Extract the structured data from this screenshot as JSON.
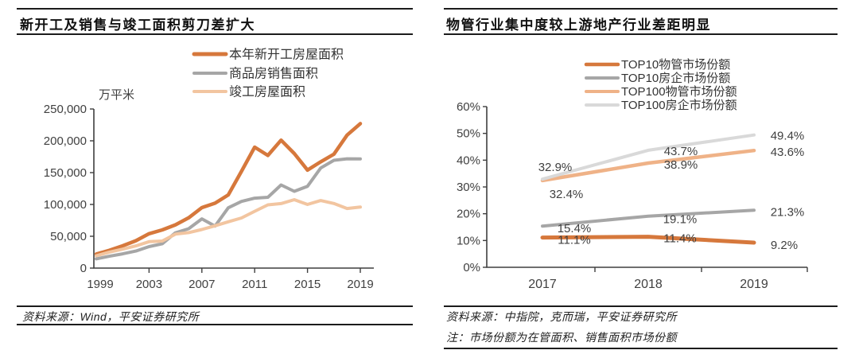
{
  "left_panel": {
    "title": "新开工及销售与竣工面积剪刀差扩大",
    "source": "资料来源：Wind，平安证券研究所"
  },
  "right_panel": {
    "title": "物管行业集中度较上游地产行业差距明显",
    "source": "资料来源：中指院，克而瑞，平安证券研究所",
    "note": "注：市场份额为在管面积、销售面积市场份额"
  },
  "colors": {
    "orange": "#D6783C",
    "gray": "#A6A6A6",
    "peach": "#F2C5A0",
    "light_orange": "#EFB287",
    "light_gray": "#D9D9D9",
    "axis": "#3f3f3f",
    "tick_label": "#404040",
    "data_label": "#404040",
    "rule": "#1c1c1c"
  },
  "chart_data": [
    {
      "type": "line",
      "title": "新开工及销售与竣工面积剪刀差扩大",
      "ylabel": "万平米",
      "grid": false,
      "legend_position": "top-right",
      "x": [
        1999,
        2000,
        2001,
        2002,
        2003,
        2004,
        2005,
        2006,
        2007,
        2008,
        2009,
        2010,
        2011,
        2012,
        2013,
        2014,
        2015,
        2016,
        2017,
        2018,
        2019
      ],
      "x_tick_labels": [
        "1999",
        "2003",
        "2007",
        "2011",
        "2015",
        "2019"
      ],
      "y_tick_labels": [
        "0",
        "50,000",
        "100,000",
        "150,000",
        "200,000",
        "250,000"
      ],
      "ylim": [
        0,
        250000
      ],
      "series": [
        {
          "name": "本年新开工房屋面积",
          "color": "#D6783C",
          "values": [
            22000,
            28000,
            35000,
            43000,
            54000,
            60000,
            68000,
            79000,
            95000,
            102000,
            115000,
            152000,
            190000,
            177000,
            201000,
            180000,
            154000,
            167000,
            179000,
            209000,
            227000
          ]
        },
        {
          "name": "商品房销售面积",
          "color": "#A6A6A6",
          "values": [
            14500,
            18600,
            22400,
            26800,
            33700,
            38200,
            55500,
            61900,
            77400,
            66000,
            94800,
            104800,
            109900,
            111300,
            130600,
            120600,
            128500,
            157300,
            169400,
            171700,
            171600
          ]
        },
        {
          "name": "竣工房屋面积",
          "color": "#F2C5A0",
          "values": [
            19400,
            25100,
            29800,
            34900,
            41500,
            42500,
            53400,
            55800,
            60600,
            66500,
            72700,
            78700,
            89200,
            99400,
            101400,
            107500,
            100000,
            106100,
            101500,
            93600,
            95900
          ]
        }
      ]
    },
    {
      "type": "line",
      "title": "物管行业集中度较上游地产行业差距明显",
      "grid": false,
      "legend_position": "top-right",
      "x": [
        2017,
        2018,
        2019
      ],
      "x_tick_labels": [
        "2017",
        "2018",
        "2019"
      ],
      "y_tick_labels": [
        "0%",
        "10%",
        "20%",
        "30%",
        "40%",
        "50%",
        "60%"
      ],
      "ylim": [
        0,
        60
      ],
      "series": [
        {
          "name": "TOP10物管市场份额",
          "color": "#D6783C",
          "values": [
            11.1,
            11.4,
            9.2
          ],
          "point_labels": [
            "11.1%",
            "11.4%",
            "9.2%"
          ]
        },
        {
          "name": "TOP10房企市场份额",
          "color": "#A6A6A6",
          "values": [
            15.4,
            19.1,
            21.3
          ],
          "point_labels": [
            "15.4%",
            "19.1%",
            "21.3%"
          ]
        },
        {
          "name": "TOP100物管市场份额",
          "color": "#EFB287",
          "values": [
            32.4,
            38.9,
            43.6
          ],
          "point_labels": [
            "32.4%",
            "38.9%",
            "43.6%"
          ]
        },
        {
          "name": "TOP100房企市场份额",
          "color": "#D9D9D9",
          "values": [
            32.9,
            43.7,
            49.4
          ],
          "point_labels": [
            "32.9%",
            "43.7%",
            "49.4%"
          ]
        }
      ]
    }
  ]
}
